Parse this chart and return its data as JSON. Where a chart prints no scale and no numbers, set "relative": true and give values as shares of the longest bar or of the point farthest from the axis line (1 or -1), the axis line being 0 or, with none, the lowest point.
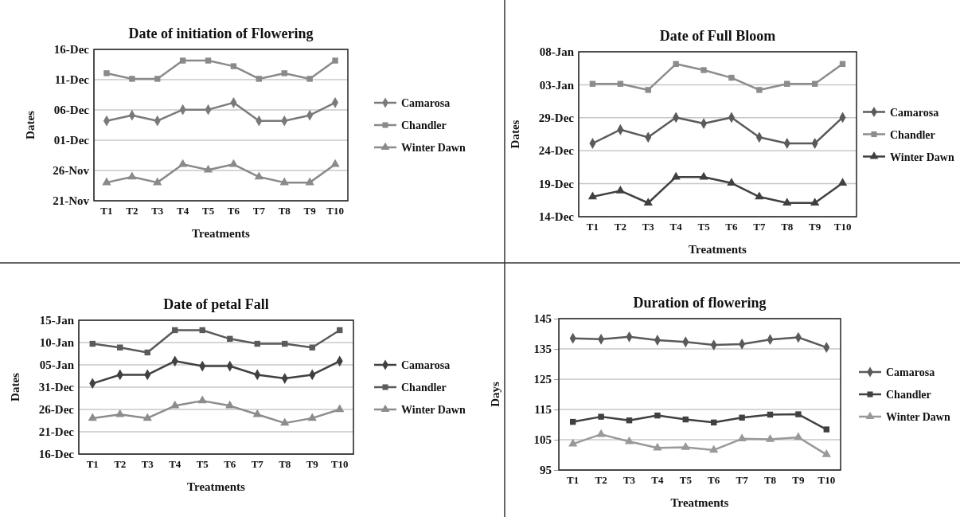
{
  "chart_data": [
    {
      "type": "line",
      "title": "Date of initiation of Flowering",
      "xlabel": "Treatments",
      "ylabel": "Dates",
      "categories": [
        "T1",
        "T2",
        "T3",
        "T4",
        "T5",
        "T6",
        "T7",
        "T8",
        "T9",
        "T10"
      ],
      "relative": true,
      "annotations": [
        "21-Nov",
        "26-Nov",
        "01-Dec",
        "06-Dec",
        "11-Dec",
        "16-Dec"
      ],
      "grid": "y",
      "legend": "right",
      "series": [
        {
          "name": "Camarosa",
          "color": "#7a7a7a",
          "marker": "diamond",
          "values": [
            0.57,
            0.61,
            0.57,
            0.65,
            0.65,
            0.7,
            0.57,
            0.57,
            0.61,
            0.7
          ]
        },
        {
          "name": "Chandler",
          "color": "#8a8a8a",
          "marker": "square",
          "values": [
            0.91,
            0.87,
            0.87,
            1,
            1,
            0.96,
            0.87,
            0.91,
            0.87,
            1
          ]
        },
        {
          "name": "Winter Dawn",
          "color": "#8a8a8a",
          "marker": "triangle",
          "values": [
            0.13,
            0.17,
            0.13,
            0.26,
            0.22,
            0.26,
            0.17,
            0.13,
            0.13,
            0.26
          ]
        }
      ]
    },
    {
      "type": "line",
      "title": "Date of Full Bloom",
      "xlabel": "Treatments",
      "ylabel": "Dates",
      "categories": [
        "T1",
        "T2",
        "T3",
        "T4",
        "T5",
        "T6",
        "T7",
        "T8",
        "T9",
        "T10"
      ],
      "relative": true,
      "annotations": [
        "14-Dec",
        "19-Dec",
        "24-Dec",
        "29-Dec",
        "03-Jan",
        "08-Jan"
      ],
      "grid": "y",
      "legend": "right",
      "series": [
        {
          "name": "Camarosa",
          "color": "#5a5a5a",
          "marker": "diamond",
          "values": [
            0.48,
            0.57,
            0.52,
            0.65,
            0.61,
            0.65,
            0.52,
            0.48,
            0.48,
            0.65
          ]
        },
        {
          "name": "Chandler",
          "color": "#8c8c8c",
          "marker": "square",
          "values": [
            0.87,
            0.87,
            0.83,
            1,
            0.96,
            0.91,
            0.83,
            0.87,
            0.87,
            1
          ]
        },
        {
          "name": "Winter Dawn",
          "color": "#404040",
          "marker": "triangle",
          "values": [
            0.13,
            0.17,
            0.09,
            0.26,
            0.26,
            0.22,
            0.13,
            0.09,
            0.09,
            0.22
          ]
        }
      ]
    },
    {
      "type": "line",
      "title": "Date of petal Fall",
      "xlabel": "Treatments",
      "ylabel": "Dates",
      "categories": [
        "T1",
        "T2",
        "T3",
        "T4",
        "T5",
        "T6",
        "T7",
        "T8",
        "T9",
        "T10"
      ],
      "relative": true,
      "annotations": [
        "16-Dec",
        "21-Dec",
        "26-Dec",
        "31-Dec",
        "05-Jan",
        "10-Jan",
        "15-Jan"
      ],
      "grid": "y",
      "legend": "right",
      "series": [
        {
          "name": "Camarosa",
          "color": "#404040",
          "marker": "diamond",
          "values": [
            0.57,
            0.64,
            0.64,
            0.75,
            0.71,
            0.71,
            0.64,
            0.61,
            0.64,
            0.75
          ]
        },
        {
          "name": "Chandler",
          "color": "#5a5a5a",
          "marker": "square",
          "values": [
            0.89,
            0.86,
            0.82,
            1,
            1,
            0.93,
            0.89,
            0.89,
            0.86,
            1
          ]
        },
        {
          "name": "Winter Dawn",
          "color": "#8c8c8c",
          "marker": "triangle",
          "values": [
            0.29,
            0.32,
            0.29,
            0.39,
            0.43,
            0.39,
            0.32,
            0.25,
            0.29,
            0.36
          ]
        }
      ]
    },
    {
      "type": "line",
      "title": "Duration of flowering",
      "xlabel": "Treatments",
      "ylabel": "Days",
      "categories": [
        "T1",
        "T2",
        "T3",
        "T4",
        "T5",
        "T6",
        "T7",
        "T8",
        "T9",
        "T10"
      ],
      "ylim": [
        95,
        145
      ],
      "yticks": [
        95,
        105,
        115,
        125,
        135,
        145
      ],
      "grid": "y",
      "legend": "right",
      "series": [
        {
          "name": "Camarosa",
          "color": "#5a5a5a",
          "marker": "diamond",
          "values": [
            138.5,
            138.2,
            139.0,
            137.9,
            137.3,
            136.3,
            136.6,
            138.1,
            138.8,
            135.5
          ]
        },
        {
          "name": "Chandler",
          "color": "#404040",
          "marker": "square",
          "values": [
            110.9,
            112.6,
            111.4,
            113.0,
            111.7,
            110.7,
            112.3,
            113.3,
            113.4,
            108.4
          ]
        },
        {
          "name": "Winter Dawn",
          "color": "#999999",
          "marker": "triangle",
          "values": [
            103.6,
            106.8,
            104.4,
            102.3,
            102.5,
            101.6,
            105.3,
            105.1,
            105.8,
            100.1
          ]
        }
      ]
    }
  ]
}
